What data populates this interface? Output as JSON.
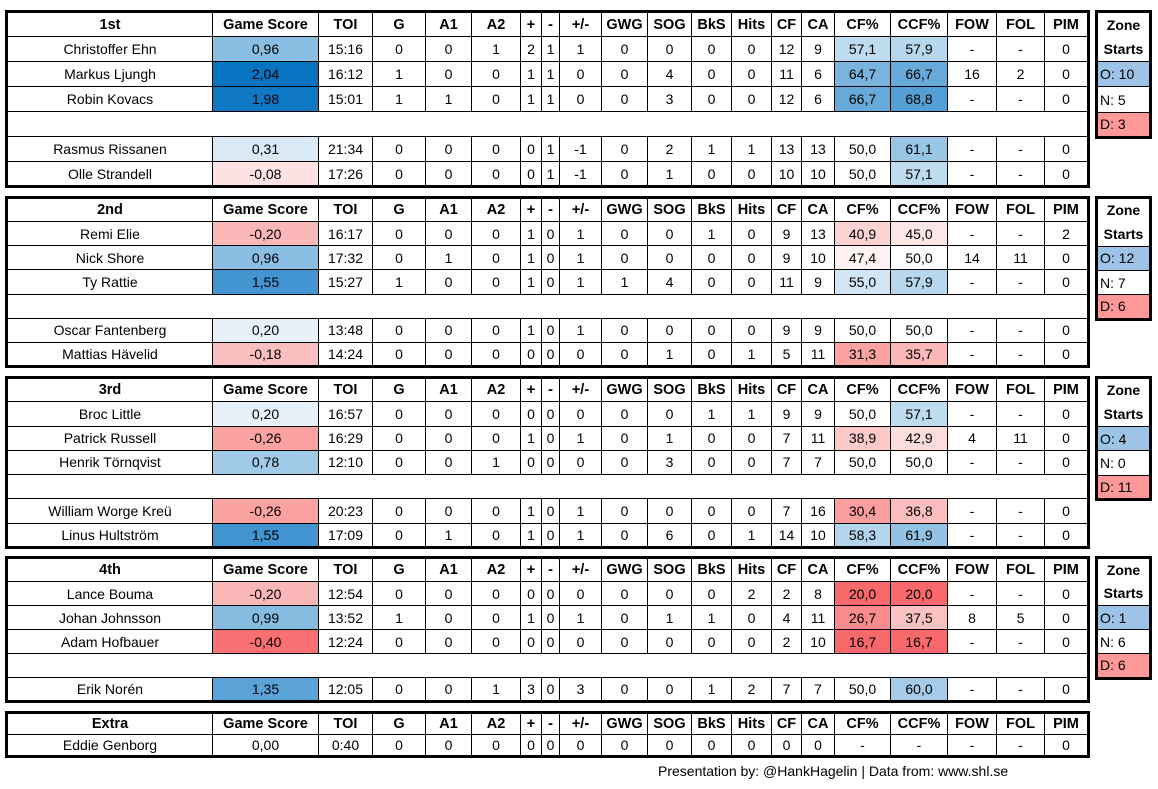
{
  "columns": [
    "Game Score",
    "TOI",
    "G",
    "A1",
    "A2",
    "+",
    "-",
    "+/-",
    "GWG",
    "SOG",
    "BkS",
    "Hits",
    "CF",
    "CA",
    "CF%",
    "CCF%",
    "FOW",
    "FOL",
    "PIM"
  ],
  "zone_header": [
    "Zone",
    "Starts"
  ],
  "colors": {
    "blue": "#0070c0",
    "red": "#f8696b",
    "zone_o": "#9dc3e6",
    "zone_d": "#ff9999"
  },
  "sections": [
    {
      "title": "1st",
      "rows": [
        [
          "Christoffer Ehn",
          "0,96",
          "15:16",
          "0",
          "0",
          "1",
          "2",
          "1",
          "1",
          "0",
          "0",
          "0",
          "0",
          "12",
          "9",
          "57,1",
          "57,9",
          "-",
          "-",
          "0"
        ],
        [
          "Markus Ljungh",
          "2,04",
          "16:12",
          "1",
          "0",
          "0",
          "1",
          "1",
          "0",
          "0",
          "4",
          "0",
          "0",
          "11",
          "6",
          "64,7",
          "66,7",
          "16",
          "2",
          "0"
        ],
        [
          "Robin Kovacs",
          "1,98",
          "15:01",
          "1",
          "1",
          "0",
          "1",
          "1",
          "0",
          "0",
          "3",
          "0",
          "0",
          "12",
          "6",
          "66,7",
          "68,8",
          "-",
          "-",
          "0"
        ],
        null,
        [
          "Rasmus Rissanen",
          "0,31",
          "21:34",
          "0",
          "0",
          "0",
          "0",
          "1",
          "-1",
          "0",
          "2",
          "1",
          "1",
          "13",
          "13",
          "50,0",
          "61,1",
          "-",
          "-",
          "0"
        ],
        [
          "Olle Strandell",
          "-0,08",
          "17:26",
          "0",
          "0",
          "0",
          "0",
          "1",
          "-1",
          "0",
          "1",
          "0",
          "0",
          "10",
          "10",
          "50,0",
          "57,1",
          "-",
          "-",
          "0"
        ]
      ],
      "zone": {
        "o": "O: 10",
        "n": "N: 5",
        "d": "D: 3"
      }
    },
    {
      "title": "2nd",
      "rows": [
        [
          "Remi Elie",
          "-0,20",
          "16:17",
          "0",
          "0",
          "0",
          "1",
          "0",
          "1",
          "0",
          "0",
          "1",
          "0",
          "9",
          "13",
          "40,9",
          "45,0",
          "-",
          "-",
          "2"
        ],
        [
          "Nick Shore",
          "0,96",
          "17:32",
          "0",
          "1",
          "0",
          "1",
          "0",
          "1",
          "0",
          "0",
          "0",
          "0",
          "9",
          "10",
          "47,4",
          "50,0",
          "14",
          "11",
          "0"
        ],
        [
          "Ty Rattie",
          "1,55",
          "15:27",
          "1",
          "0",
          "0",
          "1",
          "0",
          "1",
          "1",
          "4",
          "0",
          "0",
          "11",
          "9",
          "55,0",
          "57,9",
          "-",
          "-",
          "0"
        ],
        null,
        [
          "Oscar Fantenberg",
          "0,20",
          "13:48",
          "0",
          "0",
          "0",
          "1",
          "0",
          "1",
          "0",
          "0",
          "0",
          "0",
          "9",
          "9",
          "50,0",
          "50,0",
          "-",
          "-",
          "0"
        ],
        [
          "Mattias Hävelid",
          "-0,18",
          "14:24",
          "0",
          "0",
          "0",
          "0",
          "0",
          "0",
          "0",
          "1",
          "0",
          "1",
          "5",
          "11",
          "31,3",
          "35,7",
          "-",
          "-",
          "0"
        ]
      ],
      "zone": {
        "o": "O: 12",
        "n": "N: 7",
        "d": "D: 6"
      }
    },
    {
      "title": "3rd",
      "rows": [
        [
          "Broc Little",
          "0,20",
          "16:57",
          "0",
          "0",
          "0",
          "0",
          "0",
          "0",
          "0",
          "0",
          "1",
          "1",
          "9",
          "9",
          "50,0",
          "57,1",
          "-",
          "-",
          "0"
        ],
        [
          "Patrick Russell",
          "-0,26",
          "16:29",
          "0",
          "0",
          "0",
          "1",
          "0",
          "1",
          "0",
          "1",
          "0",
          "0",
          "7",
          "11",
          "38,9",
          "42,9",
          "4",
          "11",
          "0"
        ],
        [
          "Henrik Törnqvist",
          "0,78",
          "12:10",
          "0",
          "0",
          "1",
          "0",
          "0",
          "0",
          "0",
          "3",
          "0",
          "0",
          "7",
          "7",
          "50,0",
          "50,0",
          "-",
          "-",
          "0"
        ],
        null,
        [
          "William Worge Kreü",
          "-0,26",
          "20:23",
          "0",
          "0",
          "0",
          "1",
          "0",
          "1",
          "0",
          "0",
          "0",
          "0",
          "7",
          "16",
          "30,4",
          "36,8",
          "-",
          "-",
          "0"
        ],
        [
          "Linus Hultström",
          "1,55",
          "17:09",
          "0",
          "1",
          "0",
          "1",
          "0",
          "1",
          "0",
          "6",
          "0",
          "1",
          "14",
          "10",
          "58,3",
          "61,9",
          "-",
          "-",
          "0"
        ]
      ],
      "zone": {
        "o": "O: 4",
        "n": "N: 0",
        "d": "D: 11"
      }
    },
    {
      "title": "4th",
      "rows": [
        [
          "Lance Bouma",
          "-0,20",
          "12:54",
          "0",
          "0",
          "0",
          "0",
          "0",
          "0",
          "0",
          "0",
          "0",
          "2",
          "2",
          "8",
          "20,0",
          "20,0",
          "-",
          "-",
          "0"
        ],
        [
          "Johan Johnsson",
          "0,99",
          "13:52",
          "1",
          "0",
          "0",
          "1",
          "0",
          "1",
          "0",
          "1",
          "1",
          "0",
          "4",
          "11",
          "26,7",
          "37,5",
          "8",
          "5",
          "0"
        ],
        [
          "Adam Hofbauer",
          "-0,40",
          "12:24",
          "0",
          "0",
          "0",
          "0",
          "0",
          "0",
          "0",
          "0",
          "0",
          "0",
          "2",
          "10",
          "16,7",
          "16,7",
          "-",
          "-",
          "0"
        ],
        null,
        [
          "Erik Norén",
          "1,35",
          "12:05",
          "0",
          "0",
          "1",
          "3",
          "0",
          "3",
          "0",
          "0",
          "1",
          "2",
          "7",
          "7",
          "50,0",
          "60,0",
          "-",
          "-",
          "0"
        ]
      ],
      "zone": {
        "o": "O: 1",
        "n": "N: 6",
        "d": "D: 6"
      }
    },
    {
      "title": "Extra",
      "nocolor": true,
      "rows": [
        [
          "Eddie Genborg",
          "0,00",
          "0:40",
          "0",
          "0",
          "0",
          "0",
          "0",
          "0",
          "0",
          "0",
          "0",
          "0",
          "0",
          "0",
          "-",
          "-",
          "-",
          "-",
          "0"
        ]
      ],
      "zone": null
    }
  ],
  "footer": "Presentation by: @HankHagelin | Data from: www.shl.se"
}
